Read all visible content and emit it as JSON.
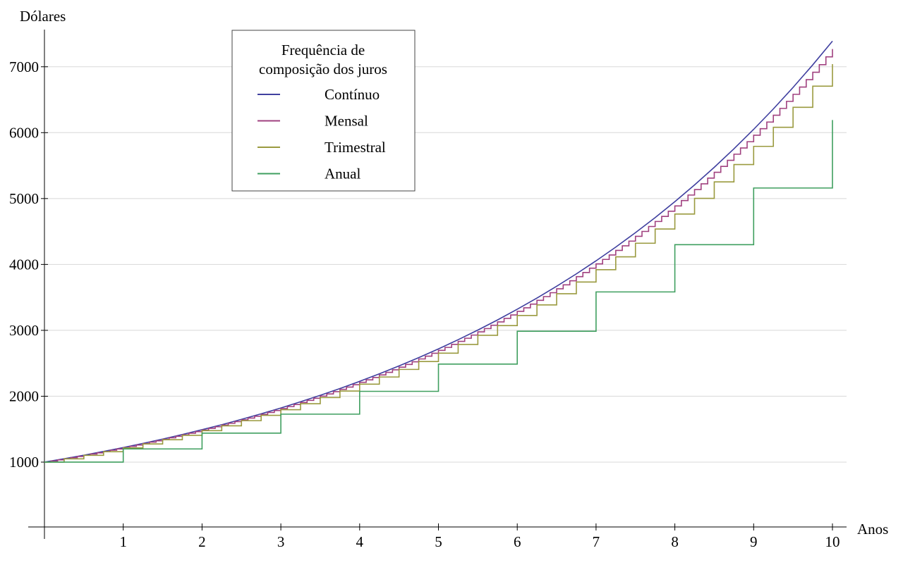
{
  "chart_data": {
    "type": "line",
    "x_label": "Anos",
    "y_label": "Dólares",
    "xlim": [
      0,
      10
    ],
    "ylim": [
      0,
      7500
    ],
    "xticks": [
      1,
      2,
      3,
      4,
      5,
      6,
      7,
      8,
      9,
      10
    ],
    "yticks": [
      1000,
      2000,
      3000,
      4000,
      5000,
      6000,
      7000
    ],
    "grid": true,
    "legend_title": [
      "Frequência de",
      "composição dos juros"
    ],
    "legend_position": "upper-left",
    "series": [
      {
        "name": "Contínuo",
        "color": "#3f3f9f",
        "step": false,
        "x": [
          0,
          0.25,
          0.5,
          0.75,
          1,
          1.25,
          1.5,
          1.75,
          2,
          2.25,
          2.5,
          2.75,
          3,
          3.25,
          3.5,
          3.75,
          4,
          4.25,
          4.5,
          4.75,
          5,
          5.25,
          5.5,
          5.75,
          6,
          6.25,
          6.5,
          6.75,
          7,
          7.25,
          7.5,
          7.75,
          8,
          8.25,
          8.5,
          8.75,
          9,
          9.25,
          9.5,
          9.75,
          10
        ],
        "values": [
          1000,
          1051,
          1105,
          1162,
          1221,
          1284,
          1350,
          1419,
          1492,
          1568,
          1649,
          1733,
          1822,
          1916,
          2014,
          2117,
          2226,
          2340,
          2460,
          2586,
          2718,
          2858,
          3004,
          3158,
          3320,
          3490,
          3669,
          3857,
          4055,
          4263,
          4482,
          4711,
          4953,
          5207,
          5474,
          5755,
          6050,
          6360,
          6686,
          7029,
          7389
        ]
      },
      {
        "name": "Mensal",
        "color": "#a0407f",
        "step": true,
        "x": [
          0,
          0.083,
          0.167,
          0.25,
          0.333,
          0.417,
          0.5,
          0.583,
          0.667,
          0.75,
          0.833,
          0.917,
          1,
          1.083,
          1.167,
          1.25,
          1.333,
          1.417,
          1.5,
          1.583,
          1.667,
          1.75,
          1.833,
          1.917,
          2,
          2.083,
          2.167,
          2.25,
          2.333,
          2.417,
          2.5,
          2.583,
          2.667,
          2.75,
          2.833,
          2.917,
          3,
          3.083,
          3.167,
          3.25,
          3.333,
          3.417,
          3.5,
          3.583,
          3.667,
          3.75,
          3.833,
          3.917,
          4,
          4.083,
          4.167,
          4.25,
          4.333,
          4.417,
          4.5,
          4.583,
          4.667,
          4.75,
          4.833,
          4.917,
          5,
          5.083,
          5.167,
          5.25,
          5.333,
          5.417,
          5.5,
          5.583,
          5.667,
          5.75,
          5.833,
          5.917,
          6,
          6.083,
          6.167,
          6.25,
          6.333,
          6.417,
          6.5,
          6.583,
          6.667,
          6.75,
          6.833,
          6.917,
          7,
          7.083,
          7.167,
          7.25,
          7.333,
          7.417,
          7.5,
          7.583,
          7.667,
          7.75,
          7.833,
          7.917,
          8,
          8.083,
          8.167,
          8.25,
          8.333,
          8.417,
          8.5,
          8.583,
          8.667,
          8.75,
          8.833,
          8.917,
          9,
          9.083,
          9.167,
          9.25,
          9.333,
          9.417,
          9.5,
          9.583,
          9.667,
          9.75,
          9.833,
          9.917,
          10
        ],
        "values": [
          1000,
          1017,
          1034,
          1051,
          1068,
          1086,
          1104,
          1123,
          1141,
          1160,
          1180,
          1199,
          1219,
          1240,
          1260,
          1281,
          1303,
          1324,
          1347,
          1369,
          1392,
          1415,
          1439,
          1463,
          1487,
          1512,
          1537,
          1563,
          1589,
          1615,
          1642,
          1669,
          1697,
          1725,
          1754,
          1783,
          1813,
          1843,
          1874,
          1905,
          1937,
          1969,
          2002,
          2035,
          2069,
          2104,
          2139,
          2175,
          2211,
          2248,
          2285,
          2323,
          2362,
          2401,
          2441,
          2482,
          2523,
          2566,
          2608,
          2652,
          2696,
          2741,
          2787,
          2833,
          2880,
          2928,
          2977,
          3027,
          3077,
          3128,
          3181,
          3234,
          3288,
          3342,
          3398,
          3455,
          3512,
          3571,
          3630,
          3691,
          3752,
          3815,
          3878,
          3943,
          4009,
          4076,
          4144,
          4213,
          4283,
          4354,
          4427,
          4501,
          4576,
          4652,
          4729,
          4808,
          4888,
          4970,
          5053,
          5137,
          5223,
          5310,
          5398,
          5488,
          5580,
          5673,
          5767,
          5863,
          5961,
          6060,
          6161,
          6264,
          6368,
          6475,
          6582,
          6692,
          6804,
          6917,
          7032,
          7150,
          7269
        ]
      },
      {
        "name": "Trimestral",
        "color": "#9a9a3f",
        "step": true,
        "x": [
          0,
          0.25,
          0.5,
          0.75,
          1,
          1.25,
          1.5,
          1.75,
          2,
          2.25,
          2.5,
          2.75,
          3,
          3.25,
          3.5,
          3.75,
          4,
          4.25,
          4.5,
          4.75,
          5,
          5.25,
          5.5,
          5.75,
          6,
          6.25,
          6.5,
          6.75,
          7,
          7.25,
          7.5,
          7.75,
          8,
          8.25,
          8.5,
          8.75,
          9,
          9.25,
          9.5,
          9.75,
          10
        ],
        "values": [
          1000,
          1050,
          1103,
          1158,
          1216,
          1276,
          1340,
          1407,
          1477,
          1551,
          1629,
          1710,
          1796,
          1886,
          1980,
          2079,
          2183,
          2292,
          2407,
          2527,
          2653,
          2786,
          2925,
          3072,
          3225,
          3386,
          3556,
          3733,
          3920,
          4116,
          4322,
          4538,
          4765,
          5003,
          5253,
          5516,
          5792,
          6081,
          6385,
          6705,
          7040
        ]
      },
      {
        "name": "Anual",
        "color": "#3f9f5f",
        "step": true,
        "x": [
          0,
          1,
          2,
          3,
          4,
          5,
          6,
          7,
          8,
          9,
          10
        ],
        "values": [
          1000,
          1200,
          1440,
          1728,
          2074,
          2488,
          2986,
          3583,
          4300,
          5160,
          6192
        ]
      }
    ]
  }
}
